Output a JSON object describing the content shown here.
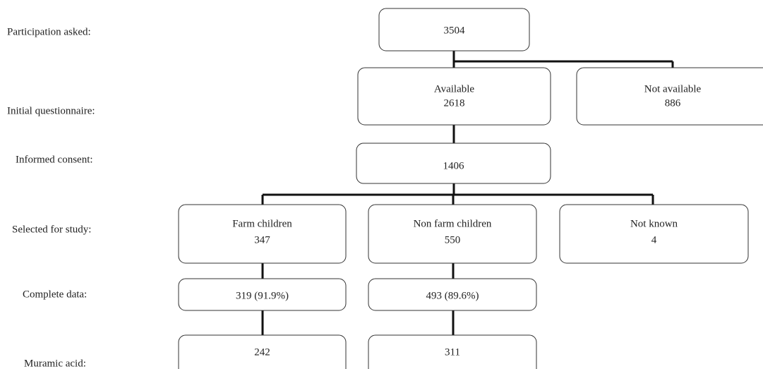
{
  "stages": [
    "Participation asked:",
    "Initial questionnaire:",
    "Informed consent:",
    "Selected for study:",
    "Complete data:",
    "Muramic acid:"
  ],
  "nodes": [
    {
      "lines": [
        "3504"
      ]
    },
    {
      "lines": [
        "Available",
        "2618"
      ]
    },
    {
      "lines": [
        "Not available",
        "886"
      ]
    },
    {
      "lines": [
        "1406"
      ]
    },
    {
      "lines": [
        "Farm children",
        "347"
      ]
    },
    {
      "lines": [
        "Non farm children",
        "550"
      ]
    },
    {
      "lines": [
        "Not known",
        "4"
      ]
    },
    {
      "lines": [
        "319 (91.9%)"
      ]
    },
    {
      "lines": [
        "493 (89.6%)"
      ]
    },
    {
      "lines": [
        "242"
      ]
    },
    {
      "lines": [
        "311"
      ]
    }
  ]
}
